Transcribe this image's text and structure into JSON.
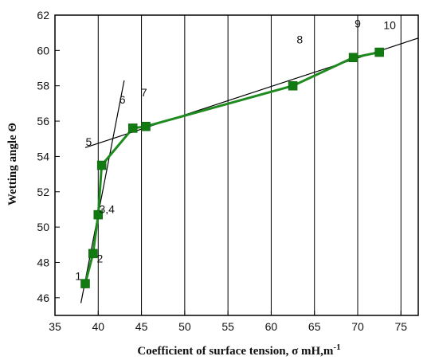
{
  "chart_data": {
    "type": "line",
    "xlabel": "Coefficient of surface tension, σ mH,m",
    "xlabel_superscript": "-1",
    "ylabel": "Wetting angle Θ",
    "xlim": [
      35,
      77
    ],
    "ylim": [
      45,
      62
    ],
    "xticks": [
      35,
      40,
      45,
      50,
      55,
      60,
      65,
      70,
      75
    ],
    "yticks": [
      46,
      48,
      50,
      52,
      54,
      56,
      58,
      60,
      62
    ],
    "grid": "vertical",
    "series": [
      {
        "color": "#1f8a1f",
        "x": [
          38.5,
          39.4,
          40.0,
          40.4,
          44.0,
          45.5,
          62.5,
          69.5,
          72.5
        ],
        "y": [
          46.8,
          48.5,
          50.7,
          53.5,
          55.6,
          55.7,
          58.0,
          59.6,
          59.9
        ]
      }
    ],
    "fit_lines": [
      {
        "x": [
          38.0,
          43.0
        ],
        "y": [
          45.7,
          58.3
        ]
      },
      {
        "x": [
          38.5,
          77.0
        ],
        "y": [
          54.5,
          60.7
        ]
      }
    ],
    "annotations": [
      {
        "text": "1",
        "x": 37.7,
        "y": 47.0
      },
      {
        "text": "2",
        "x": 40.2,
        "y": 48.0
      },
      {
        "text": "3,4",
        "x": 41.0,
        "y": 50.8
      },
      {
        "text": "5",
        "x": 38.9,
        "y": 54.6
      },
      {
        "text": "6",
        "x": 42.8,
        "y": 57.0
      },
      {
        "text": "7",
        "x": 45.3,
        "y": 57.4
      },
      {
        "text": "8",
        "x": 63.3,
        "y": 60.4
      },
      {
        "text": "9",
        "x": 70.0,
        "y": 61.3
      },
      {
        "text": "10",
        "x": 73.7,
        "y": 61.2
      }
    ]
  }
}
